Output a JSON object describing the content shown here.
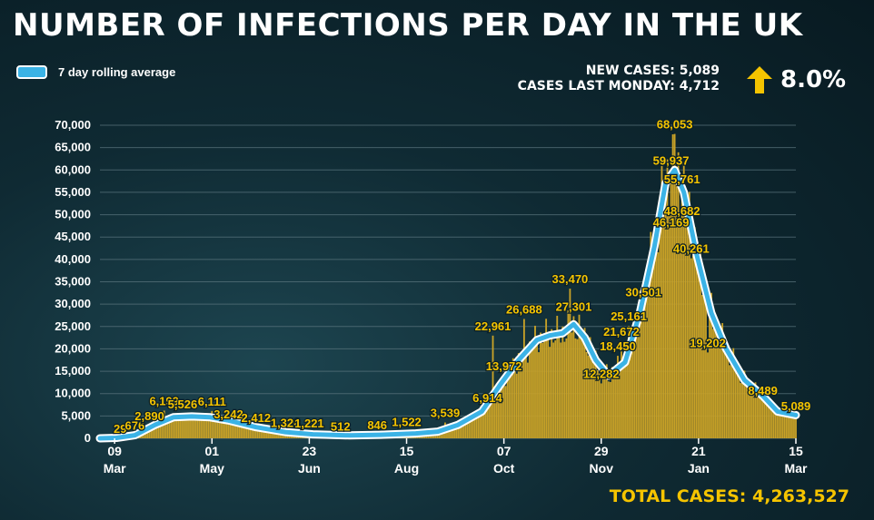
{
  "header": {
    "title": "NUMBER OF INFECTIONS PER DAY IN THE UK"
  },
  "legend": {
    "label": "7 day rolling average",
    "color": "#3bb3e6"
  },
  "stats": {
    "new_cases": "NEW CASES: 5,089",
    "last_monday": "CASES LAST MONDAY: 4,712",
    "change": "8.0%",
    "change_icon": "up-arrow-icon",
    "arrow_color": "#f5c400"
  },
  "footer": {
    "total": "TOTAL CASES: 4,263,527"
  },
  "colors": {
    "bars": "#c9a227",
    "average_line": "#3bb3e6",
    "labels": "#f5c400"
  },
  "chart_data": {
    "type": "bar",
    "ylim": [
      0,
      70000
    ],
    "yticks": [
      0,
      5000,
      10000,
      15000,
      20000,
      25000,
      30000,
      35000,
      40000,
      45000,
      50000,
      55000,
      60000,
      65000,
      70000
    ],
    "ytick_labels": [
      "0",
      "5,000",
      "10,000",
      "15,000",
      "20,000",
      "25,000",
      "30,000",
      "35,000",
      "40,000",
      "45,000",
      "50,000",
      "55,000",
      "60,000",
      "65,000",
      "70,000"
    ],
    "grid": true,
    "x_start": "2020-03-01",
    "x_end": "2021-03-15",
    "xticks": [
      {
        "date": "2020-03-09",
        "day": "09",
        "month": "Mar"
      },
      {
        "date": "2020-05-01",
        "day": "01",
        "month": "May"
      },
      {
        "date": "2020-06-23",
        "day": "23",
        "month": "Jun"
      },
      {
        "date": "2020-08-15",
        "day": "15",
        "month": "Aug"
      },
      {
        "date": "2020-10-07",
        "day": "07",
        "month": "Oct"
      },
      {
        "date": "2020-11-29",
        "day": "29",
        "month": "Nov"
      },
      {
        "date": "2021-01-21",
        "day": "21",
        "month": "Jan"
      },
      {
        "date": "2021-03-15",
        "day": "15",
        "month": "Mar"
      }
    ],
    "series": [
      {
        "name": "7 day rolling average",
        "type": "line",
        "points": [
          [
            "2020-03-01",
            0
          ],
          [
            "2020-03-10",
            100
          ],
          [
            "2020-03-20",
            700
          ],
          [
            "2020-03-31",
            3000
          ],
          [
            "2020-04-10",
            4700
          ],
          [
            "2020-04-20",
            4900
          ],
          [
            "2020-04-30",
            4700
          ],
          [
            "2020-05-10",
            4000
          ],
          [
            "2020-05-25",
            2500
          ],
          [
            "2020-06-10",
            1400
          ],
          [
            "2020-06-25",
            900
          ],
          [
            "2020-07-15",
            650
          ],
          [
            "2020-08-01",
            800
          ],
          [
            "2020-08-20",
            1100
          ],
          [
            "2020-09-01",
            1500
          ],
          [
            "2020-09-12",
            3000
          ],
          [
            "2020-09-25",
            6000
          ],
          [
            "2020-10-05",
            12000
          ],
          [
            "2020-10-15",
            17500
          ],
          [
            "2020-10-25",
            22000
          ],
          [
            "2020-11-01",
            23000
          ],
          [
            "2020-11-08",
            23500
          ],
          [
            "2020-11-14",
            25500
          ],
          [
            "2020-11-20",
            22500
          ],
          [
            "2020-11-26",
            17500
          ],
          [
            "2020-12-03",
            14000
          ],
          [
            "2020-12-12",
            17000
          ],
          [
            "2020-12-20",
            28000
          ],
          [
            "2020-12-28",
            43000
          ],
          [
            "2021-01-03",
            57000
          ],
          [
            "2021-01-08",
            60000
          ],
          [
            "2021-01-13",
            55000
          ],
          [
            "2021-01-20",
            41000
          ],
          [
            "2021-01-28",
            28000
          ],
          [
            "2021-02-05",
            20000
          ],
          [
            "2021-02-15",
            13000
          ],
          [
            "2021-02-25",
            9500
          ],
          [
            "2021-03-05",
            6000
          ],
          [
            "2021-03-15",
            5200
          ]
        ]
      }
    ],
    "labeled_values": [
      {
        "date": "2020-03-12",
        "value": 29,
        "label": "29"
      },
      {
        "date": "2020-03-20",
        "value": 676,
        "label": "676"
      },
      {
        "date": "2020-03-28",
        "value": 2890,
        "label": "2,890"
      },
      {
        "date": "2020-04-05",
        "value": 6199,
        "label": "6,199"
      },
      {
        "date": "2020-04-15",
        "value": 5526,
        "label": "5,526"
      },
      {
        "date": "2020-05-01",
        "value": 6111,
        "label": "6,111"
      },
      {
        "date": "2020-05-10",
        "value": 3242,
        "label": "3,242"
      },
      {
        "date": "2020-05-25",
        "value": 2412,
        "label": "2,412"
      },
      {
        "date": "2020-06-10",
        "value": 1326,
        "label": "1,326"
      },
      {
        "date": "2020-06-23",
        "value": 1221,
        "label": "1,221"
      },
      {
        "date": "2020-07-10",
        "value": 512,
        "label": "512"
      },
      {
        "date": "2020-07-30",
        "value": 846,
        "label": "846"
      },
      {
        "date": "2020-08-15",
        "value": 1522,
        "label": "1,522"
      },
      {
        "date": "2020-09-05",
        "value": 3539,
        "label": "3,539"
      },
      {
        "date": "2020-09-28",
        "value": 6914,
        "label": "6,914"
      },
      {
        "date": "2020-10-07",
        "value": 13972,
        "label": "13,972"
      },
      {
        "date": "2020-10-01",
        "value": 22961,
        "label": "22,961"
      },
      {
        "date": "2020-10-18",
        "value": 26688,
        "label": "26,688"
      },
      {
        "date": "2020-11-12",
        "value": 33470,
        "label": "33,470"
      },
      {
        "date": "2020-11-14",
        "value": 27301,
        "label": "27,301"
      },
      {
        "date": "2020-11-29",
        "value": 12282,
        "label": "12,282"
      },
      {
        "date": "2020-12-08",
        "value": 18450,
        "label": "18,450"
      },
      {
        "date": "2020-12-10",
        "value": 21672,
        "label": "21,672"
      },
      {
        "date": "2020-12-14",
        "value": 25161,
        "label": "25,161"
      },
      {
        "date": "2020-12-22",
        "value": 30501,
        "label": "30,501"
      },
      {
        "date": "2021-01-08",
        "value": 68053,
        "label": "68,053"
      },
      {
        "date": "2021-01-06",
        "value": 59937,
        "label": "59,937"
      },
      {
        "date": "2021-01-12",
        "value": 55761,
        "label": "55,761"
      },
      {
        "date": "2021-01-12",
        "value": 48682,
        "label": "48,682"
      },
      {
        "date": "2021-01-06",
        "value": 46169,
        "label": "46,169"
      },
      {
        "date": "2021-01-17",
        "value": 40261,
        "label": "40,261"
      },
      {
        "date": "2021-01-26",
        "value": 19202,
        "label": "19,202"
      },
      {
        "date": "2021-02-25",
        "value": 8489,
        "label": "8,489"
      },
      {
        "date": "2021-03-15",
        "value": 5089,
        "label": "5,089"
      }
    ]
  }
}
